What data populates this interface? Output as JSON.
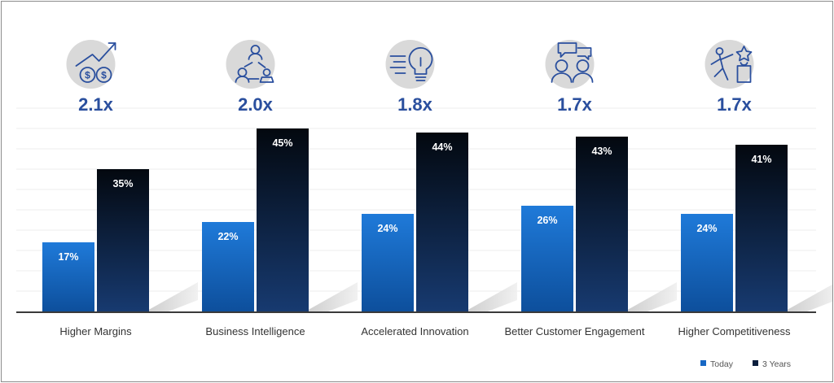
{
  "chart_data": {
    "type": "bar",
    "categories": [
      "Higher Margins",
      "Business Intelligence",
      "Accelerated Innovation",
      "Better Customer Engagement",
      "Higher Competitiveness"
    ],
    "series": [
      {
        "name": "Today",
        "values": [
          17,
          22,
          24,
          26,
          24
        ],
        "labels": [
          "17%",
          "22%",
          "24%",
          "26%",
          "24%"
        ],
        "color": "#1767c4"
      },
      {
        "name": "3 Years",
        "values": [
          35,
          45,
          44,
          43,
          41
        ],
        "labels": [
          "35%",
          "45%",
          "44%",
          "43%",
          "41%"
        ],
        "color": "#0a1e3d"
      }
    ],
    "multipliers": [
      "2.1x",
      "2.0x",
      "1.8x",
      "1.7x",
      "1.7x"
    ],
    "icons": [
      "money-growth-icon",
      "team-network-icon",
      "lightbulb-idea-icon",
      "discussion-people-icon",
      "winner-trophy-icon"
    ],
    "ylim": [
      0,
      45
    ],
    "grid": true,
    "legend_position": "bottom-right",
    "title": "",
    "xlabel": "",
    "ylabel": ""
  }
}
